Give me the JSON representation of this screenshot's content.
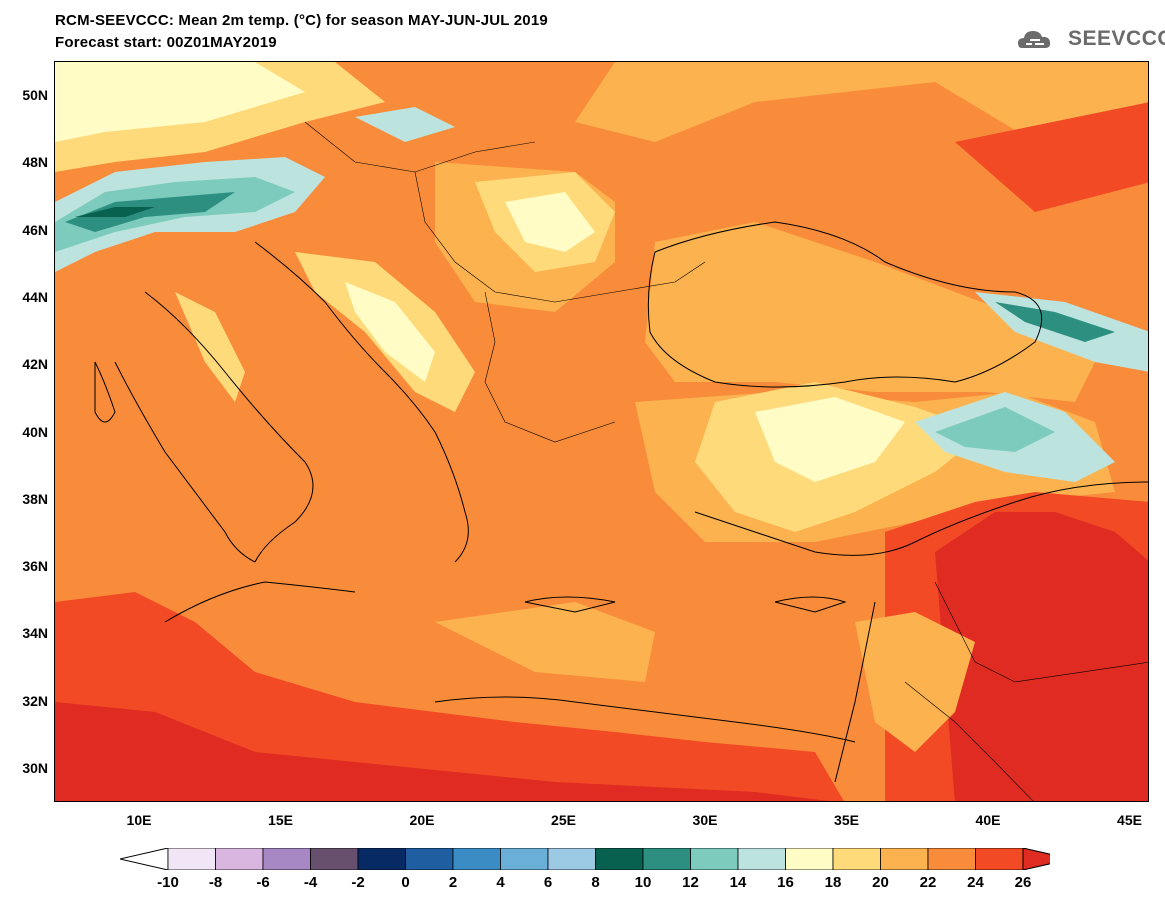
{
  "header": {
    "title_line1": "RCM-SEEVCCC: Mean 2m temp. (°C) for season MAY-JUN-JUL 2019",
    "title_line2": "Forecast start: 00Z01MAY2019",
    "logo_text": "SEEVCCC"
  },
  "axes": {
    "lat_labels": [
      "50N",
      "48N",
      "46N",
      "44N",
      "42N",
      "40N",
      "38N",
      "36N",
      "34N",
      "32N",
      "30N"
    ],
    "lon_labels": [
      "10E",
      "15E",
      "20E",
      "25E",
      "30E",
      "35E",
      "40E",
      "45E"
    ]
  },
  "colorbar": {
    "labels": [
      "-10",
      "-8",
      "-6",
      "-4",
      "-2",
      "0",
      "2",
      "4",
      "6",
      "8",
      "10",
      "12",
      "14",
      "16",
      "18",
      "20",
      "22",
      "24",
      "26"
    ],
    "colors": [
      "#ffffff",
      "#f1e6f5",
      "#d9b6e0",
      "#a888c4",
      "#66506d",
      "#072a64",
      "#1f5ea0",
      "#3b8bc4",
      "#6aafd8",
      "#9cc9e4",
      "#08614f",
      "#2c8f80",
      "#7ccbbd",
      "#bde3df",
      "#fffcc5",
      "#ffda7a",
      "#fbb24f",
      "#f98c3a",
      "#f24a25",
      "#df2b21"
    ]
  }
}
